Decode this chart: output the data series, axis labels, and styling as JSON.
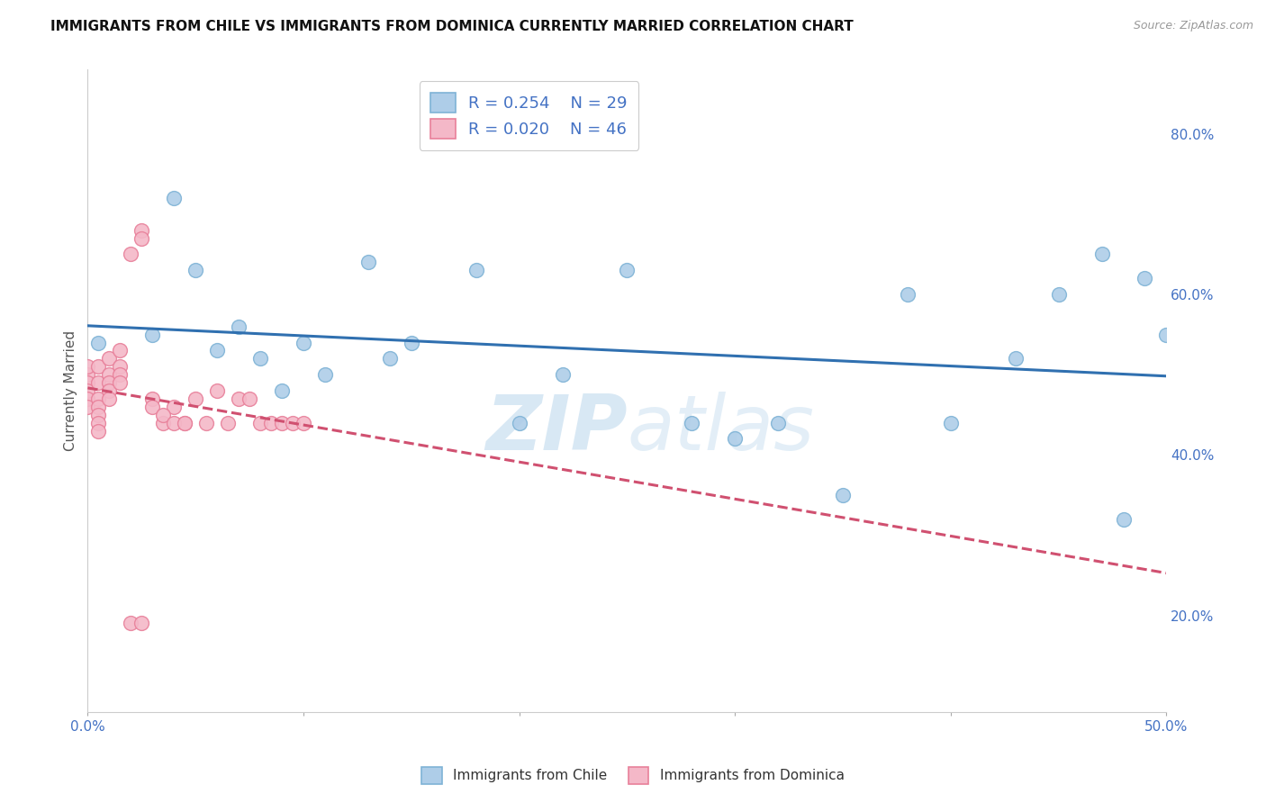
{
  "title": "IMMIGRANTS FROM CHILE VS IMMIGRANTS FROM DOMINICA CURRENTLY MARRIED CORRELATION CHART",
  "source_text": "Source: ZipAtlas.com",
  "ylabel": "Currently Married",
  "ytick_labels": [
    "20.0%",
    "40.0%",
    "60.0%",
    "80.0%"
  ],
  "ytick_values": [
    0.2,
    0.4,
    0.6,
    0.8
  ],
  "xlim": [
    0.0,
    0.5
  ],
  "ylim": [
    0.08,
    0.88
  ],
  "legend_r1": "0.254",
  "legend_n1": "29",
  "legend_r2": "0.020",
  "legend_n2": "46",
  "chile_face": "#aecde8",
  "chile_edge": "#7fb3d6",
  "dominica_face": "#f4b8c8",
  "dominica_edge": "#e8809a",
  "trend_chile_color": "#3070b0",
  "trend_dominica_color": "#d05070",
  "chile_x": [
    0.005,
    0.03,
    0.04,
    0.05,
    0.06,
    0.07,
    0.08,
    0.09,
    0.1,
    0.11,
    0.13,
    0.14,
    0.15,
    0.18,
    0.2,
    0.22,
    0.25,
    0.28,
    0.3,
    0.32,
    0.35,
    0.38,
    0.4,
    0.43,
    0.45,
    0.47,
    0.48,
    0.49,
    0.5
  ],
  "chile_y": [
    0.54,
    0.55,
    0.72,
    0.63,
    0.53,
    0.56,
    0.52,
    0.48,
    0.54,
    0.5,
    0.64,
    0.52,
    0.54,
    0.63,
    0.44,
    0.5,
    0.63,
    0.44,
    0.42,
    0.44,
    0.35,
    0.6,
    0.44,
    0.52,
    0.6,
    0.65,
    0.32,
    0.62,
    0.55
  ],
  "dominica_x": [
    0.0,
    0.0,
    0.0,
    0.0,
    0.0,
    0.0,
    0.005,
    0.005,
    0.005,
    0.005,
    0.005,
    0.005,
    0.005,
    0.01,
    0.01,
    0.01,
    0.01,
    0.01,
    0.015,
    0.015,
    0.015,
    0.015,
    0.02,
    0.025,
    0.025,
    0.03,
    0.035,
    0.04,
    0.045,
    0.05,
    0.055,
    0.06,
    0.065,
    0.07,
    0.075,
    0.08,
    0.085,
    0.09,
    0.095,
    0.1,
    0.02,
    0.025,
    0.03,
    0.035,
    0.04,
    0.045
  ],
  "dominica_y": [
    0.5,
    0.51,
    0.49,
    0.48,
    0.47,
    0.46,
    0.51,
    0.49,
    0.47,
    0.46,
    0.45,
    0.44,
    0.43,
    0.52,
    0.5,
    0.49,
    0.48,
    0.47,
    0.53,
    0.51,
    0.5,
    0.49,
    0.65,
    0.68,
    0.67,
    0.47,
    0.44,
    0.46,
    0.44,
    0.47,
    0.44,
    0.48,
    0.44,
    0.47,
    0.47,
    0.44,
    0.44,
    0.44,
    0.44,
    0.44,
    0.19,
    0.19,
    0.46,
    0.45,
    0.44,
    0.44
  ],
  "watermark_zip": "ZIP",
  "watermark_atlas": "atlas",
  "background_color": "#ffffff",
  "grid_color": "#d0d0d0",
  "title_fontsize": 11,
  "ylabel_fontsize": 11,
  "tick_fontsize": 11,
  "legend_fontsize": 13,
  "source_fontsize": 9
}
